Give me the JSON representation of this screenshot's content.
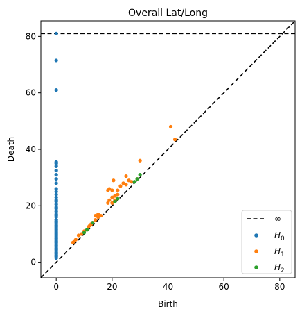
{
  "chart_data": {
    "type": "scatter",
    "title": "Overall Lat/Long",
    "xlabel": "Birth",
    "ylabel": "Death",
    "xlim": [
      -5.5,
      85.5
    ],
    "ylim": [
      -5.5,
      85.5
    ],
    "xticks": [
      0,
      20,
      40,
      60,
      80
    ],
    "yticks": [
      0,
      20,
      40,
      60,
      80
    ],
    "grid": false,
    "legend_position": "bottom-right",
    "infinity_line": {
      "label": "∞",
      "y": 81,
      "style": "dashed",
      "color": "#000000"
    },
    "diagonal": {
      "style": "dashed",
      "color": "#000000"
    },
    "series": [
      {
        "name": "H0",
        "name_base": "H",
        "name_sub": "0",
        "color": "#1f77b4",
        "points": [
          [
            0,
            81
          ],
          [
            0,
            71.5
          ],
          [
            0,
            61
          ],
          [
            0,
            35.5
          ],
          [
            0,
            35
          ],
          [
            0,
            34
          ],
          [
            0,
            32.5
          ],
          [
            0,
            31
          ],
          [
            0,
            29.5
          ],
          [
            0,
            28
          ],
          [
            0,
            26
          ],
          [
            0,
            25
          ],
          [
            0,
            24
          ],
          [
            0,
            23
          ],
          [
            0,
            22
          ],
          [
            0,
            21.5
          ],
          [
            0,
            20.5
          ],
          [
            0,
            19.5
          ],
          [
            0,
            19
          ],
          [
            0,
            18
          ],
          [
            0,
            17
          ],
          [
            0,
            16.5
          ],
          [
            0,
            16
          ],
          [
            0,
            15
          ],
          [
            0,
            14.5
          ],
          [
            0,
            14
          ],
          [
            0,
            13.5
          ],
          [
            0,
            13
          ],
          [
            0,
            12.5
          ],
          [
            0,
            12
          ],
          [
            0,
            11.5
          ],
          [
            0,
            11
          ],
          [
            0,
            10.5
          ],
          [
            0,
            10
          ],
          [
            0,
            9.5
          ],
          [
            0,
            9
          ],
          [
            0,
            8.5
          ],
          [
            0,
            8
          ],
          [
            0,
            7.5
          ],
          [
            0,
            7
          ],
          [
            0,
            6.5
          ],
          [
            0,
            6
          ],
          [
            0,
            5.5
          ],
          [
            0,
            5
          ],
          [
            0,
            4.5
          ],
          [
            0,
            4
          ],
          [
            0,
            3.5
          ],
          [
            0,
            3
          ],
          [
            0,
            2.5
          ],
          [
            0,
            2
          ],
          [
            0,
            1.5
          ]
        ]
      },
      {
        "name": "H1",
        "name_base": "H",
        "name_sub": "1",
        "color": "#ff7f0e",
        "points": [
          [
            41,
            48
          ],
          [
            42.5,
            43.5
          ],
          [
            30,
            36
          ],
          [
            25,
            30.5
          ],
          [
            19,
            26
          ],
          [
            20,
            25.5
          ],
          [
            22,
            25.5
          ],
          [
            18.5,
            25.5
          ],
          [
            23,
            27
          ],
          [
            24,
            28
          ],
          [
            25,
            27.5
          ],
          [
            26,
            29
          ],
          [
            27,
            28.5
          ],
          [
            29,
            29.5
          ],
          [
            21,
            23.5
          ],
          [
            22,
            24
          ],
          [
            20,
            23
          ],
          [
            21,
            22
          ],
          [
            19,
            22
          ],
          [
            18.5,
            21
          ],
          [
            20,
            21
          ],
          [
            15,
            17
          ],
          [
            14,
            16.5
          ],
          [
            16,
            16.5
          ],
          [
            15,
            16
          ],
          [
            14,
            15
          ],
          [
            13,
            14
          ],
          [
            12,
            13
          ],
          [
            11.5,
            12.5
          ],
          [
            12.5,
            13.5
          ],
          [
            9,
            10
          ],
          [
            8,
            9.5
          ],
          [
            7,
            8
          ],
          [
            6.5,
            7.5
          ],
          [
            6,
            7
          ],
          [
            10,
            11
          ],
          [
            20.5,
            29
          ]
        ]
      },
      {
        "name": "H2",
        "name_base": "H",
        "name_sub": "2",
        "color": "#2ca02c",
        "points": [
          [
            10,
            10.5
          ],
          [
            13,
            14
          ],
          [
            21,
            21.5
          ],
          [
            28,
            28.5
          ],
          [
            29,
            29.5
          ],
          [
            30,
            31
          ],
          [
            11,
            11.5
          ],
          [
            22,
            22.5
          ]
        ]
      }
    ]
  }
}
